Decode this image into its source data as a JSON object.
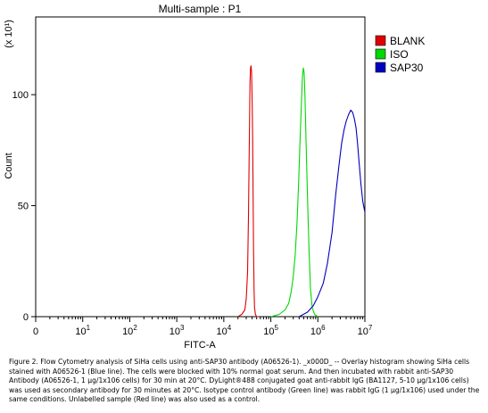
{
  "chart_data": {
    "type": "line",
    "title": "Multi-sample : P1",
    "xlabel": "FITC-A",
    "ylabel": "Count",
    "y_multiplier_label": "(x 10¹)",
    "x_scale": "log",
    "xlim": [
      0,
      10000000
    ],
    "ylim": [
      0,
      135
    ],
    "x_tick_labels": [
      {
        "value": 0,
        "base": "0",
        "exp": ""
      },
      {
        "value": 10,
        "base": "10",
        "exp": "1"
      },
      {
        "value": 100,
        "base": "10",
        "exp": "2"
      },
      {
        "value": 1000,
        "base": "10",
        "exp": "3"
      },
      {
        "value": 10000,
        "base": "10",
        "exp": "4"
      },
      {
        "value": 100000,
        "base": "10",
        "exp": "5"
      },
      {
        "value": 1000000,
        "base": "10",
        "exp": "6"
      },
      {
        "value": 10000000,
        "base": "10",
        "exp": "7"
      }
    ],
    "y_ticks": [
      "0",
      "50",
      "100"
    ],
    "legend": {
      "placement": "top-right"
    },
    "series": [
      {
        "name": "BLANK",
        "color": "#e00000",
        "x": [
          20000,
          24000,
          28000,
          30000,
          32000,
          33500,
          35000,
          36000,
          37000,
          38000,
          39000,
          40000,
          41000,
          42000,
          43000,
          44000,
          45000,
          47000,
          50000,
          55000
        ],
        "y": [
          0,
          1,
          3,
          8,
          20,
          45,
          80,
          105,
          112,
          113,
          110,
          98,
          80,
          55,
          30,
          12,
          4,
          1,
          0,
          0
        ]
      },
      {
        "name": "ISO",
        "color": "#00d800",
        "x": [
          100000,
          150000,
          200000,
          240000,
          270000,
          300000,
          330000,
          360000,
          390000,
          420000,
          450000,
          470000,
          490000,
          510000,
          530000,
          560000,
          600000,
          650000,
          700000,
          760000,
          850000,
          1000000
        ],
        "y": [
          0,
          1,
          3,
          6,
          11,
          18,
          28,
          42,
          60,
          80,
          98,
          108,
          112,
          110,
          100,
          80,
          55,
          30,
          12,
          4,
          1,
          0
        ]
      },
      {
        "name": "SAP30",
        "color": "#0000c0",
        "x": [
          400000,
          600000,
          800000,
          1000000,
          1300000,
          1600000,
          2000000,
          2400000,
          2800000,
          3200000,
          3600000,
          4000000,
          4500000,
          5000000,
          5500000,
          6000000,
          6500000,
          7000000,
          7500000,
          8200000,
          9000000,
          10000000
        ],
        "y": [
          0,
          2,
          5,
          9,
          15,
          24,
          38,
          55,
          68,
          78,
          84,
          88,
          91,
          93,
          92,
          89,
          85,
          78,
          70,
          60,
          52,
          47
        ]
      }
    ]
  },
  "caption": "Figure 2. Flow Cytometry analysis of SiHa cells using anti-SAP30 antibody (A06526-1). _x000D_ -- Overlay histogram showing SiHa cells stained with A06526-1 (Blue line). The cells were blocked with 10% normal goat serum. And then incubated with rabbit anti-SAP30 Antibody (A06526-1, 1 µg/1x106 cells) for 30 min at 20°C. DyLight®488 conjugated goat anti-rabbit IgG (BA1127, 5-10 µg/1x106 cells) was used as secondary antibody for 30 minutes at 20°C. Isotype control antibody (Green line) was rabbit IgG (1 µg/1x106) used under the same conditions. Unlabelled sample (Red line) was also used as a control."
}
